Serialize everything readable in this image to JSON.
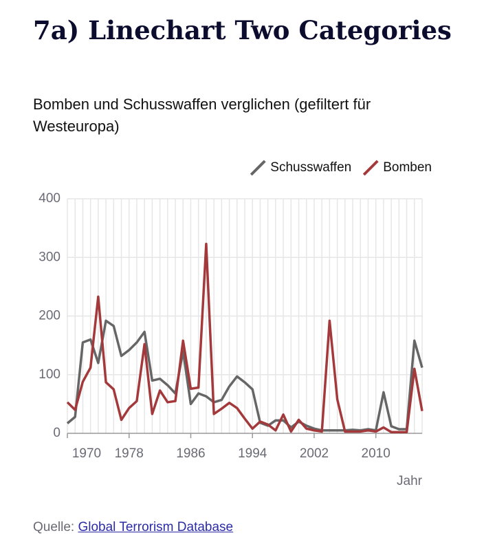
{
  "chart_data": {
    "type": "line",
    "title": "7a) Linechart Two Categories",
    "subtitle": "Bomben und Schusswaffen verglichen (gefiltert für Westeuropa)",
    "x_label": "Jahr",
    "source_label": "Quelle:",
    "source_link": "Global Terrorism Database",
    "x": [
      1970,
      1971,
      1972,
      1973,
      1974,
      1975,
      1976,
      1977,
      1978,
      1979,
      1980,
      1981,
      1982,
      1983,
      1984,
      1985,
      1986,
      1987,
      1988,
      1989,
      1990,
      1991,
      1992,
      1993,
      1994,
      1995,
      1996,
      1997,
      1998,
      1999,
      2000,
      2001,
      2002,
      2003,
      2004,
      2005,
      2006,
      2007,
      2008,
      2009,
      2010,
      2011,
      2012,
      2013,
      2014,
      2015,
      2016
    ],
    "series": [
      {
        "name": "Schusswaffen",
        "color": "#666666",
        "values": [
          17,
          28,
          155,
          160,
          120,
          192,
          183,
          132,
          142,
          155,
          173,
          90,
          93,
          82,
          68,
          140,
          50,
          68,
          63,
          53,
          57,
          80,
          97,
          87,
          75,
          18,
          13,
          22,
          22,
          10,
          20,
          13,
          8,
          5,
          5,
          5,
          5,
          6,
          5,
          7,
          5,
          70,
          12,
          7,
          7,
          158,
          112
        ]
      },
      {
        "name": "Bomben",
        "color": "#a3393b",
        "values": [
          53,
          40,
          88,
          112,
          233,
          87,
          75,
          23,
          43,
          55,
          152,
          33,
          73,
          53,
          55,
          158,
          76,
          78,
          323,
          33,
          42,
          52,
          43,
          25,
          8,
          20,
          15,
          5,
          32,
          3,
          23,
          8,
          5,
          3,
          192,
          58,
          3,
          3,
          3,
          5,
          3,
          10,
          2,
          2,
          2,
          110,
          38
        ]
      }
    ],
    "xlim": [
      1970,
      2016
    ],
    "xticks": [
      1970,
      1978,
      1986,
      1994,
      2002,
      2010
    ],
    "ylim": [
      0,
      400
    ],
    "yticks": [
      0,
      100,
      200,
      300,
      400
    ],
    "grid": true,
    "legend": "top-right"
  }
}
